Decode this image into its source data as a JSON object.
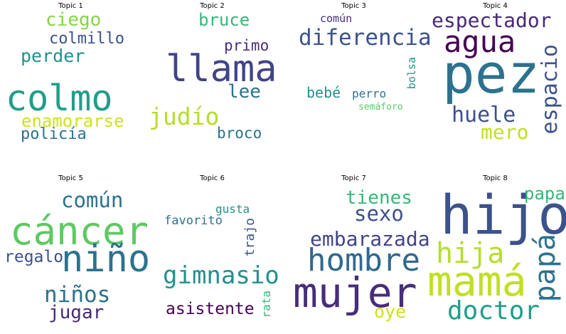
{
  "colors": {
    "yellow_green": "#b5de2b",
    "light_green": "#86d549",
    "green": "#35b779",
    "teal": "#21918c",
    "blue_teal": "#2c728e",
    "blue": "#3b528b",
    "indigo": "#472d7b",
    "purple": "#440154",
    "yellow": "#fde725"
  },
  "topics": [
    {
      "title": "Topic 1",
      "words": [
        {
          "text": "ciego",
          "color": "#86d549"
        },
        {
          "text": "colmillo",
          "color": "#3b528b"
        },
        {
          "text": "perder",
          "color": "#21918c"
        },
        {
          "text": "colmo",
          "color": "#1f9e89"
        },
        {
          "text": "enamorarse",
          "color": "#cfe11c"
        },
        {
          "text": "policía",
          "color": "#2c728e"
        }
      ]
    },
    {
      "title": "Topic 2",
      "words": [
        {
          "text": "bruce",
          "color": "#35b779"
        },
        {
          "text": "primo",
          "color": "#472d7b"
        },
        {
          "text": "llama",
          "color": "#414487"
        },
        {
          "text": "lee",
          "color": "#2c728e"
        },
        {
          "text": "judío",
          "color": "#b5de2b"
        },
        {
          "text": "broco",
          "color": "#2c728e"
        }
      ]
    },
    {
      "title": "Topic 3",
      "words": [
        {
          "text": "común",
          "color": "#472d7b"
        },
        {
          "text": "diferencia",
          "color": "#3b528b"
        },
        {
          "text": "bolsa",
          "color": "#21918c"
        },
        {
          "text": "bebé",
          "color": "#21918c"
        },
        {
          "text": "perro",
          "color": "#2c728e"
        },
        {
          "text": "semáforo",
          "color": "#5ec962"
        }
      ]
    },
    {
      "title": "Topic 4",
      "words": [
        {
          "text": "espectador",
          "color": "#482878"
        },
        {
          "text": "agua",
          "color": "#440154"
        },
        {
          "text": "pez",
          "color": "#2c728e"
        },
        {
          "text": "espacio",
          "color": "#3b528b"
        },
        {
          "text": "huele",
          "color": "#3b528b"
        },
        {
          "text": "mero",
          "color": "#c2df23"
        }
      ]
    },
    {
      "title": "Topic 5",
      "words": [
        {
          "text": "común",
          "color": "#2c728e"
        },
        {
          "text": "cáncer",
          "color": "#5ec962"
        },
        {
          "text": "regalo",
          "color": "#3b528b"
        },
        {
          "text": "niño",
          "color": "#2c728e"
        },
        {
          "text": "niños",
          "color": "#2c728e"
        },
        {
          "text": "jugar",
          "color": "#482878"
        }
      ]
    },
    {
      "title": "Topic 6",
      "words": [
        {
          "text": "gusta",
          "color": "#21918c"
        },
        {
          "text": "favorito",
          "color": "#2c728e"
        },
        {
          "text": "trajo",
          "color": "#3b528b"
        },
        {
          "text": "gimnasio",
          "color": "#21918c"
        },
        {
          "text": "asistente",
          "color": "#440154"
        },
        {
          "text": "rata",
          "color": "#35b779"
        }
      ]
    },
    {
      "title": "Topic 7",
      "words": [
        {
          "text": "tienes",
          "color": "#35b779"
        },
        {
          "text": "sexo",
          "color": "#3b528b"
        },
        {
          "text": "embarazada",
          "color": "#414487"
        },
        {
          "text": "hombre",
          "color": "#31688e"
        },
        {
          "text": "mujer",
          "color": "#472d7b"
        },
        {
          "text": "oye",
          "color": "#cfe11c"
        }
      ]
    },
    {
      "title": "Topic 8",
      "words": [
        {
          "text": "papa",
          "color": "#35b779"
        },
        {
          "text": "hijo",
          "color": "#3b528b"
        },
        {
          "text": "hija",
          "color": "#b5de2b"
        },
        {
          "text": "papá",
          "color": "#2c728e"
        },
        {
          "text": "mamá",
          "color": "#c2df23"
        },
        {
          "text": "doctor",
          "color": "#1f9e89"
        }
      ]
    }
  ]
}
